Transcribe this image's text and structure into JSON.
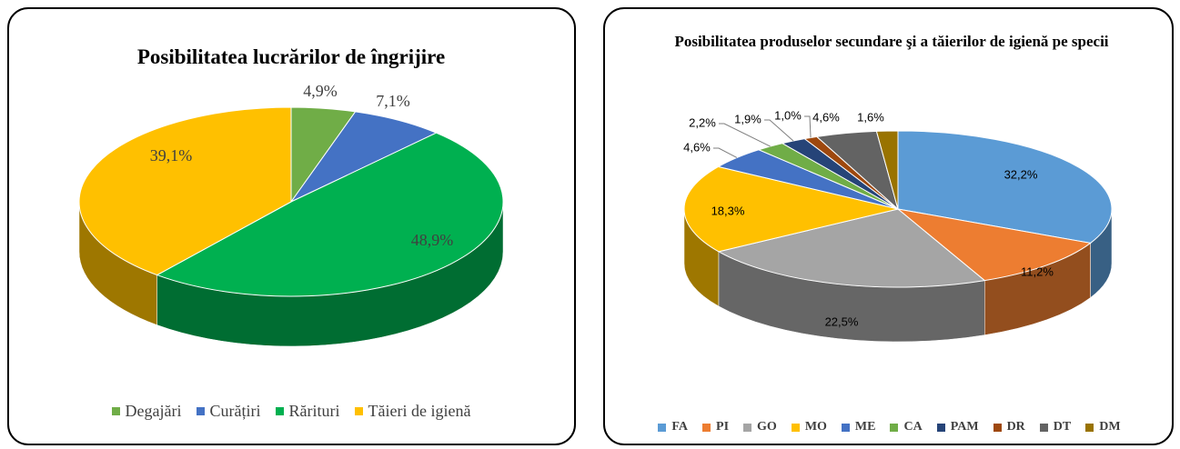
{
  "chart_data": [
    {
      "type": "pie3d",
      "title": "Posibilitatea lucrărilor de îngrijire",
      "categories": [
        "Degajări",
        "Curățiri",
        "Rărituri",
        "Tăieri de igienă"
      ],
      "values": [
        4.9,
        7.1,
        48.9,
        39.1
      ],
      "value_labels": [
        "4,9%",
        "7,1%",
        "48,9%",
        "39,1%"
      ],
      "colors": [
        "#70ad47",
        "#4472c4",
        "#00b050",
        "#ffc000"
      ],
      "legend": "bottom"
    },
    {
      "type": "pie3d",
      "title": "Posibilitatea produselor secundare şi a tăierilor de igienă pe specii",
      "categories": [
        "FA",
        "PI",
        "GO",
        "MO",
        "ME",
        "CA",
        "PAM",
        "DR",
        "DT",
        "DM"
      ],
      "values": [
        32.2,
        11.2,
        22.5,
        18.3,
        4.6,
        2.2,
        1.9,
        1.0,
        4.6,
        1.6
      ],
      "value_labels": [
        "32,2%",
        "11,2%",
        "22,5%",
        "18,3%",
        "4,6%",
        "2,2%",
        "1,9%",
        "1,0%",
        "4,6%",
        "1,6%"
      ],
      "colors": [
        "#5b9bd5",
        "#ed7d31",
        "#a5a5a5",
        "#ffc000",
        "#4472c4",
        "#70ad47",
        "#264478",
        "#9e480e",
        "#636363",
        "#997300"
      ],
      "legend": "bottom"
    }
  ]
}
